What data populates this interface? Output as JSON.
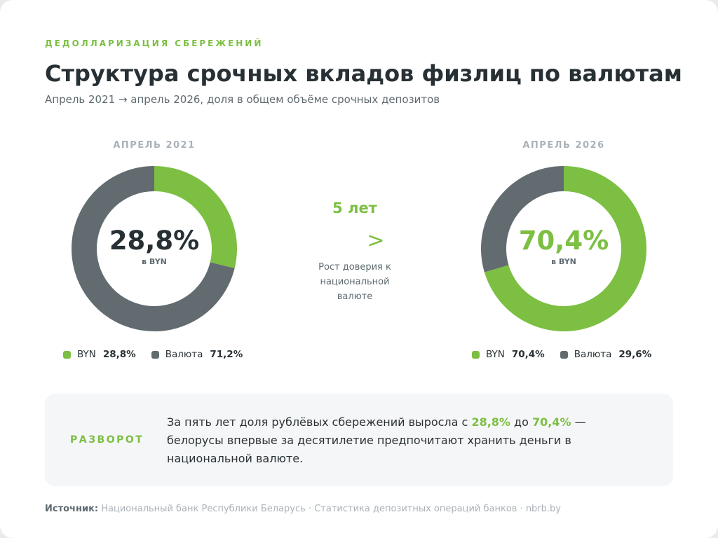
{
  "kicker": "ДЕДОЛЛАРИЗАЦИЯ СБЕРЕЖЕНИЙ",
  "title": "Структура срочных вкладов физлиц по валютам",
  "subtitle": "Апрель 2021 → апрель 2026, доля в общем объёме срочных депозитов",
  "colors": {
    "byn": "#7cbf42",
    "byn_light": "#8fcc55",
    "currency": "#626b70",
    "text_dark": "#273034",
    "muted": "#aab2b8"
  },
  "chart_data": [
    {
      "type": "pie",
      "title": "АПРЕЛЬ 2021",
      "center_value": "28,8%",
      "center_caption": "в BYN",
      "slices": [
        {
          "label": "BYN",
          "value": 28.8,
          "value_text": "28,8%"
        },
        {
          "label": "Валюта",
          "value": 71.2,
          "value_text": "71,2%"
        }
      ],
      "legend_position": "bottom"
    },
    {
      "type": "pie",
      "title": "АПРЕЛЬ 2026",
      "center_value": "70,4%",
      "center_caption": "в BYN",
      "slices": [
        {
          "label": "BYN",
          "value": 70.4,
          "value_text": "70,4%"
        },
        {
          "label": "Валюта",
          "value": 29.6,
          "value_text": "29,6%"
        }
      ],
      "legend_position": "bottom"
    }
  ],
  "middle": {
    "years": "5 лет",
    "arrow": ">",
    "caption": "Рост доверия к национальной валюте"
  },
  "callout": {
    "label": "РАЗВОРОТ",
    "text_before": "За пять лет доля рублёвых сбережений выросла с ",
    "highlight_from": "28,8%",
    "text_middle": " до ",
    "highlight_to": "70,4%",
    "text_after": " — белорусы впервые за десятилетие предпочитают хранить деньги в национальной валюте."
  },
  "source": {
    "label": "Источник:",
    "text": "Национальный банк Республики Беларусь · Статистика депозитных операций банков · nbrb.by"
  }
}
